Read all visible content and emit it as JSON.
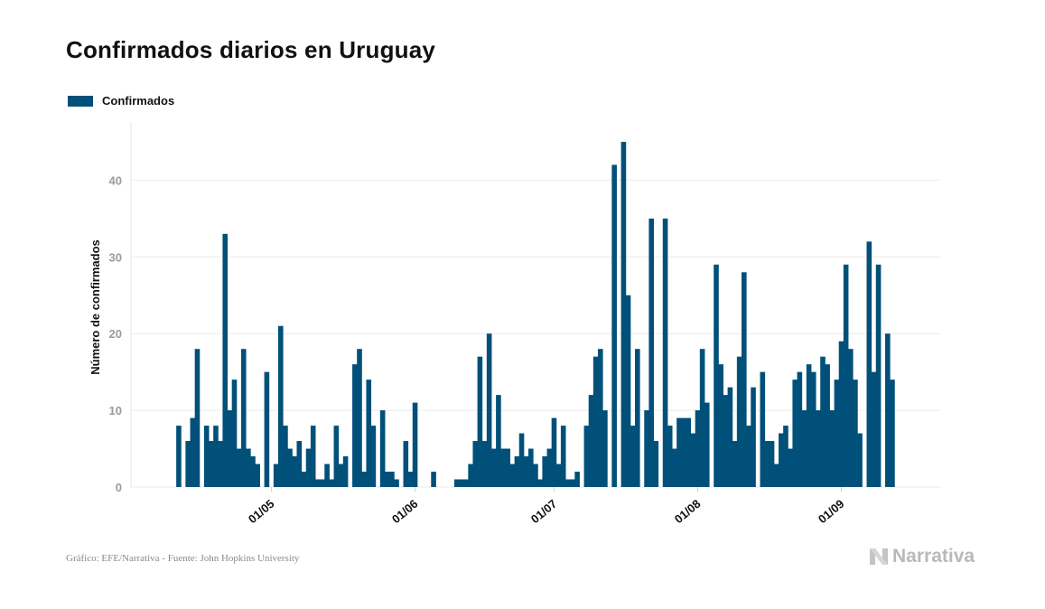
{
  "title": "Confirmados diarios en Uruguay",
  "legend": {
    "label": "Confirmados",
    "color": "#00507a"
  },
  "footer": {
    "source": "Gráfico: EFE/Narrativa - Fuente: John Hopkins University",
    "brand": "Narrativa",
    "brand_icon": "narrativa-logo-icon"
  },
  "chart_data": {
    "type": "bar",
    "ylabel": "Número de confirmados",
    "ylim": [
      0,
      47
    ],
    "yticks": [
      0,
      10,
      20,
      30,
      40
    ],
    "grid": true,
    "legend_position": "top-left",
    "color": "#00507a",
    "x_start": "2020-04-10",
    "xticks": [
      {
        "label": "01/05",
        "date": "2020-05-01"
      },
      {
        "label": "01/06",
        "date": "2020-06-01"
      },
      {
        "label": "01/07",
        "date": "2020-07-01"
      },
      {
        "label": "01/08",
        "date": "2020-08-01"
      },
      {
        "label": "01/09",
        "date": "2020-09-01"
      }
    ],
    "values": [
      0,
      8,
      0,
      6,
      9,
      18,
      0,
      8,
      6,
      8,
      6,
      33,
      10,
      14,
      5,
      18,
      5,
      4,
      3,
      0,
      15,
      0,
      3,
      21,
      8,
      5,
      4,
      6,
      2,
      5,
      8,
      1,
      1,
      3,
      1,
      8,
      3,
      4,
      0,
      16,
      18,
      2,
      14,
      8,
      0,
      10,
      2,
      2,
      1,
      0,
      6,
      2,
      11,
      0,
      0,
      0,
      2,
      0,
      0,
      0,
      0,
      1,
      1,
      1,
      3,
      6,
      17,
      6,
      20,
      5,
      12,
      5,
      5,
      3,
      4,
      7,
      4,
      5,
      3,
      1,
      4,
      5,
      9,
      3,
      8,
      1,
      1,
      2,
      0,
      8,
      12,
      17,
      18,
      10,
      0,
      42,
      0,
      45,
      25,
      8,
      18,
      0,
      10,
      35,
      6,
      0,
      35,
      8,
      5,
      9,
      9,
      9,
      7,
      10,
      18,
      11,
      0,
      29,
      16,
      12,
      13,
      6,
      17,
      28,
      8,
      13,
      0,
      15,
      6,
      6,
      3,
      7,
      8,
      5,
      14,
      15,
      10,
      16,
      15,
      10,
      17,
      16,
      10,
      14,
      19,
      29,
      18,
      14,
      7,
      0,
      32,
      15,
      29,
      0,
      20,
      14
    ]
  }
}
